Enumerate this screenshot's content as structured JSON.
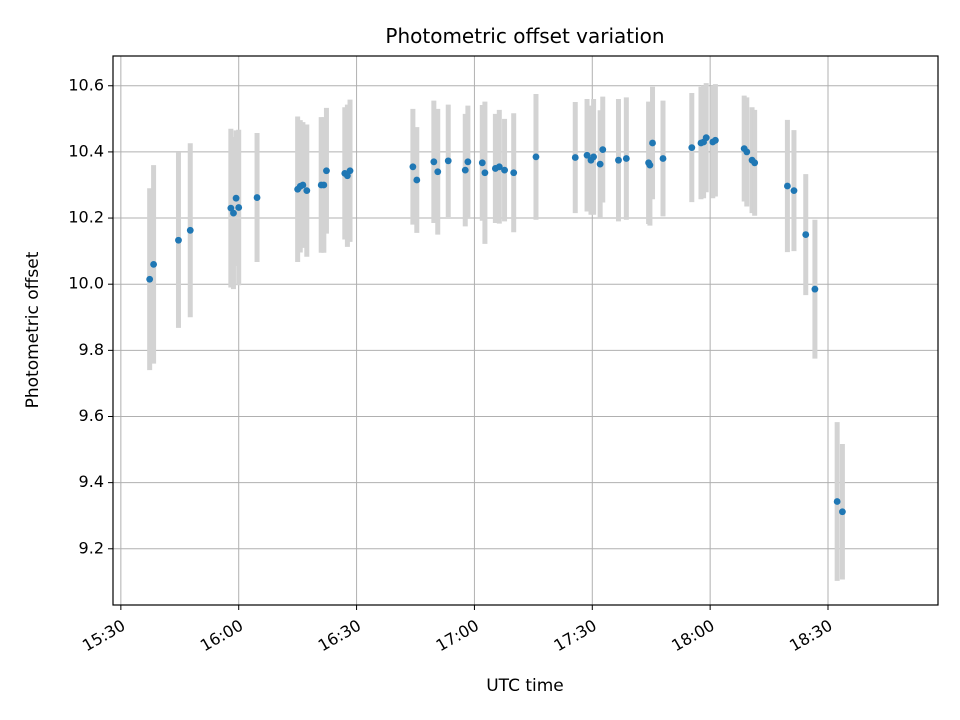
{
  "chart_data": {
    "type": "scatter",
    "title": "Photometric offset variation",
    "xlabel": "UTC time",
    "ylabel": "Photometric offset",
    "x_format": "time HH:MM (UTC)",
    "xlim": [
      "15:28",
      "18:58"
    ],
    "ylim": [
      9.03,
      10.69
    ],
    "x_ticks": [
      "15:30",
      "16:00",
      "16:30",
      "17:00",
      "17:30",
      "18:00",
      "18:30"
    ],
    "y_ticks": [
      "9.2",
      "9.4",
      "9.6",
      "9.8",
      "10.0",
      "10.2",
      "10.4",
      "10.6"
    ],
    "grid": true,
    "colors": {
      "marker": "#1f77b4",
      "errorbar": "#d3d3d3",
      "grid": "#b0b0b0"
    },
    "points": [
      {
        "x": "15:37:20",
        "y": 10.015,
        "err": 0.275
      },
      {
        "x": "15:38:20",
        "y": 10.06,
        "err": 0.3
      },
      {
        "x": "15:44:40",
        "y": 10.133,
        "err": 0.265
      },
      {
        "x": "15:47:40",
        "y": 10.163,
        "err": 0.263
      },
      {
        "x": "15:58:00",
        "y": 10.23,
        "err": 0.24
      },
      {
        "x": "15:58:40",
        "y": 10.215,
        "err": 0.23
      },
      {
        "x": "15:59:20",
        "y": 10.26,
        "err": 0.205
      },
      {
        "x": "16:00:00",
        "y": 10.232,
        "err": 0.235
      },
      {
        "x": "16:04:40",
        "y": 10.262,
        "err": 0.195
      },
      {
        "x": "16:15:00",
        "y": 10.287,
        "err": 0.22
      },
      {
        "x": "16:15:40",
        "y": 10.296,
        "err": 0.2
      },
      {
        "x": "16:16:20",
        "y": 10.3,
        "err": 0.19
      },
      {
        "x": "16:17:20",
        "y": 10.283,
        "err": 0.2
      },
      {
        "x": "16:21:00",
        "y": 10.3,
        "err": 0.205
      },
      {
        "x": "16:21:40",
        "y": 10.3,
        "err": 0.205
      },
      {
        "x": "16:22:20",
        "y": 10.343,
        "err": 0.19
      },
      {
        "x": "16:27:00",
        "y": 10.335,
        "err": 0.2
      },
      {
        "x": "16:27:40",
        "y": 10.328,
        "err": 0.215
      },
      {
        "x": "16:28:20",
        "y": 10.343,
        "err": 0.215
      },
      {
        "x": "16:44:20",
        "y": 10.355,
        "err": 0.175
      },
      {
        "x": "16:45:20",
        "y": 10.315,
        "err": 0.16
      },
      {
        "x": "16:49:40",
        "y": 10.37,
        "err": 0.185
      },
      {
        "x": "16:50:40",
        "y": 10.34,
        "err": 0.19
      },
      {
        "x": "16:53:20",
        "y": 10.373,
        "err": 0.17
      },
      {
        "x": "16:57:40",
        "y": 10.345,
        "err": 0.17
      },
      {
        "x": "16:58:20",
        "y": 10.37,
        "err": 0.17
      },
      {
        "x": "17:02:00",
        "y": 10.367,
        "err": 0.175
      },
      {
        "x": "17:02:40",
        "y": 10.337,
        "err": 0.215
      },
      {
        "x": "17:05:20",
        "y": 10.35,
        "err": 0.165
      },
      {
        "x": "17:06:20",
        "y": 10.355,
        "err": 0.172
      },
      {
        "x": "17:07:40",
        "y": 10.345,
        "err": 0.155
      },
      {
        "x": "17:10:00",
        "y": 10.337,
        "err": 0.18
      },
      {
        "x": "17:15:40",
        "y": 10.385,
        "err": 0.19
      },
      {
        "x": "17:25:40",
        "y": 10.383,
        "err": 0.168
      },
      {
        "x": "17:28:40",
        "y": 10.39,
        "err": 0.17
      },
      {
        "x": "17:29:40",
        "y": 10.375,
        "err": 0.165
      },
      {
        "x": "17:30:20",
        "y": 10.385,
        "err": 0.175
      },
      {
        "x": "17:32:00",
        "y": 10.363,
        "err": 0.163
      },
      {
        "x": "17:32:40",
        "y": 10.407,
        "err": 0.16
      },
      {
        "x": "17:36:40",
        "y": 10.375,
        "err": 0.185
      },
      {
        "x": "17:38:40",
        "y": 10.38,
        "err": 0.185
      },
      {
        "x": "17:44:20",
        "y": 10.367,
        "err": 0.185
      },
      {
        "x": "17:44:40",
        "y": 10.36,
        "err": 0.183
      },
      {
        "x": "17:45:20",
        "y": 10.427,
        "err": 0.17
      },
      {
        "x": "17:48:00",
        "y": 10.38,
        "err": 0.175
      },
      {
        "x": "17:55:20",
        "y": 10.413,
        "err": 0.165
      },
      {
        "x": "17:57:40",
        "y": 10.427,
        "err": 0.17
      },
      {
        "x": "17:58:20",
        "y": 10.43,
        "err": 0.17
      },
      {
        "x": "17:59:00",
        "y": 10.443,
        "err": 0.165
      },
      {
        "x": "18:00:40",
        "y": 10.43,
        "err": 0.17
      },
      {
        "x": "18:01:20",
        "y": 10.435,
        "err": 0.17
      },
      {
        "x": "18:08:40",
        "y": 10.41,
        "err": 0.16
      },
      {
        "x": "18:09:20",
        "y": 10.4,
        "err": 0.165
      },
      {
        "x": "18:10:40",
        "y": 10.375,
        "err": 0.16
      },
      {
        "x": "18:11:20",
        "y": 10.367,
        "err": 0.16
      },
      {
        "x": "18:19:40",
        "y": 10.297,
        "err": 0.2
      },
      {
        "x": "18:21:20",
        "y": 10.283,
        "err": 0.183
      },
      {
        "x": "18:24:20",
        "y": 10.15,
        "err": 0.183
      },
      {
        "x": "18:26:40",
        "y": 9.985,
        "err": 0.21
      },
      {
        "x": "18:32:20",
        "y": 9.343,
        "err": 0.24
      },
      {
        "x": "18:33:40",
        "y": 9.312,
        "err": 0.205
      }
    ]
  }
}
